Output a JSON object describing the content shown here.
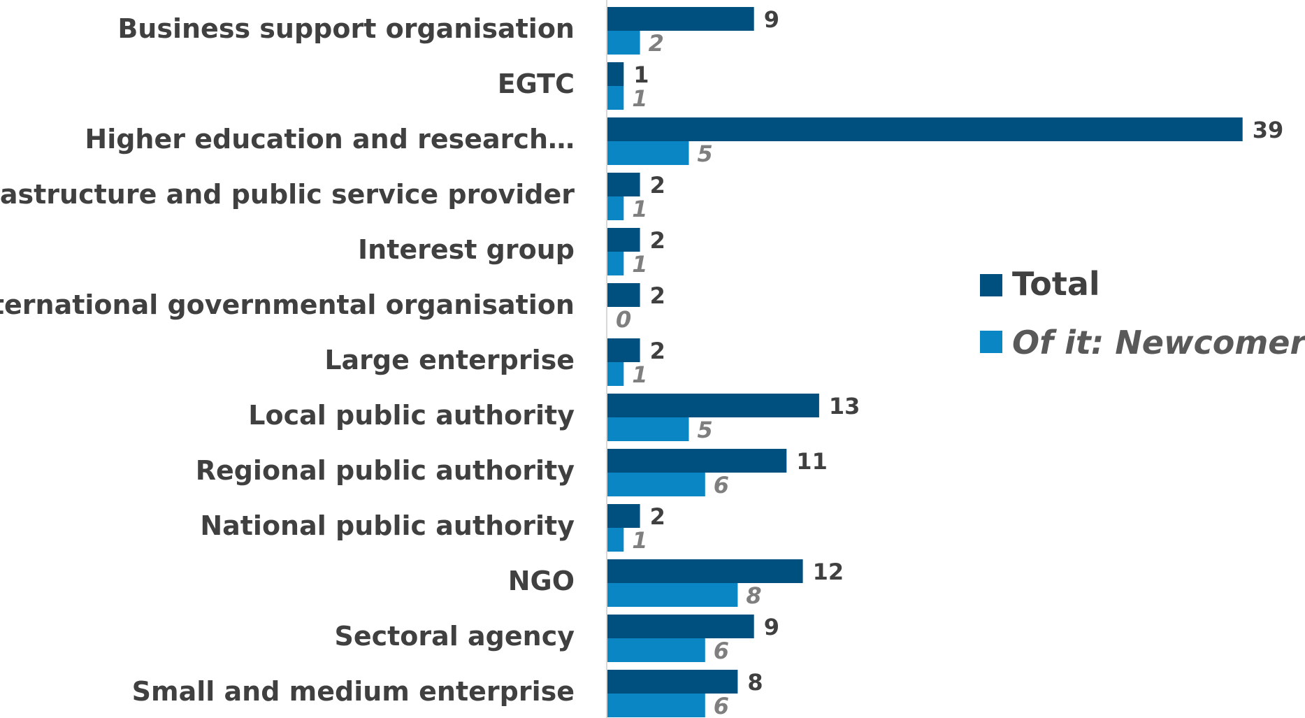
{
  "chart_data": {
    "type": "bar",
    "orientation": "horizontal",
    "categories": [
      "Business support organisation",
      "EGTC",
      "Higher education and research…",
      "Infrastructure and public service provider",
      "Interest group",
      "International governmental organisation",
      "Large enterprise",
      "Local public authority",
      "Regional public authority",
      "National public authority",
      "NGO",
      "Sectoral agency",
      "Small and medium enterprise"
    ],
    "series": [
      {
        "name": "Total",
        "color": "#00507f",
        "values": [
          9,
          1,
          39,
          2,
          2,
          2,
          2,
          13,
          11,
          2,
          12,
          9,
          8
        ]
      },
      {
        "name": "Of it: Newcomers",
        "color": "#0a86c4",
        "values": [
          2,
          1,
          5,
          1,
          1,
          0,
          1,
          5,
          6,
          1,
          8,
          6,
          6
        ]
      }
    ],
    "title": "",
    "xlabel": "",
    "ylabel": "",
    "xlim": [
      0,
      39
    ],
    "grid": false,
    "legend_position": "right"
  }
}
